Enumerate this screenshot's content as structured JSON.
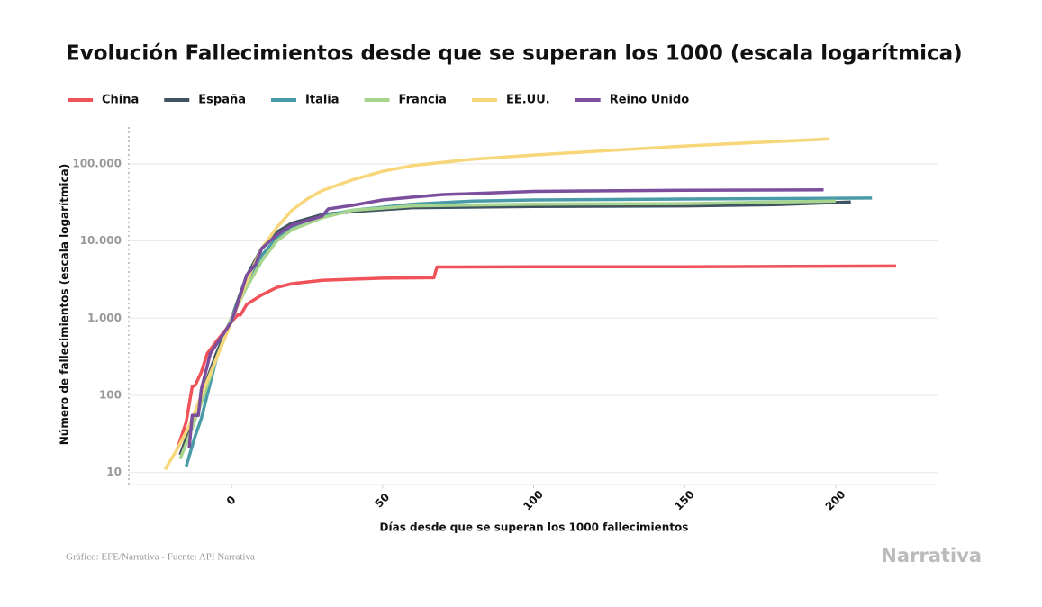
{
  "chart_data": {
    "type": "line",
    "title": "Evolución Fallecimientos desde que se superan los 1000 (escala logarítmica)",
    "x_label": "Días desde que se superan los 1000 fallecimientos",
    "y_label": "Número de fallecimientos (escala logarítmica)",
    "yscale": "log",
    "grid": true,
    "legend": "top",
    "xlim": [
      -34,
      234
    ],
    "xticks": [
      0,
      50,
      100,
      150,
      200
    ],
    "ylim": [
      7,
      300000
    ],
    "yticks": [
      10,
      100,
      {
        "value": 1000,
        "label": "1.000"
      },
      {
        "value": 10000,
        "label": "10.000"
      },
      {
        "value": 100000,
        "label": "100.000"
      }
    ],
    "series": [
      {
        "name": "China",
        "color": "#f0525a",
        "x": [
          -18,
          -15,
          -13,
          -12,
          -10,
          -8,
          -5,
          -2,
          0,
          2,
          3,
          5,
          10,
          15,
          20,
          30,
          50,
          67,
          68,
          100,
          150,
          220
        ],
        "values": [
          20,
          45,
          130,
          135,
          200,
          350,
          500,
          700,
          900,
          1100,
          1100,
          1500,
          2000,
          2500,
          2800,
          3100,
          3300,
          3340,
          4600,
          4630,
          4640,
          4740
        ]
      },
      {
        "name": "España",
        "color": "#3f5360",
        "x": [
          -17,
          -14,
          -10,
          -5,
          0,
          5,
          10,
          15,
          20,
          30,
          40,
          60,
          100,
          150,
          180,
          205
        ],
        "values": [
          17,
          35,
          100,
          350,
          1000,
          3500,
          8000,
          13000,
          17000,
          22000,
          24000,
          27000,
          28000,
          28500,
          29500,
          32000
        ]
      },
      {
        "name": "Italia",
        "color": "#4a9ba8",
        "x": [
          -15,
          -12,
          -10,
          -5,
          0,
          5,
          10,
          15,
          20,
          30,
          40,
          60,
          80,
          100,
          150,
          212
        ],
        "values": [
          12,
          30,
          50,
          300,
          1000,
          3000,
          6500,
          11000,
          15000,
          21000,
          25000,
          30000,
          33000,
          34000,
          35000,
          36000
        ]
      },
      {
        "name": "Francia",
        "color": "#a8d58d",
        "x": [
          -17,
          -14,
          -10,
          -5,
          0,
          5,
          10,
          15,
          20,
          30,
          40,
          60,
          100,
          150,
          200
        ],
        "values": [
          15,
          30,
          80,
          300,
          1000,
          2500,
          5500,
          10000,
          14000,
          20000,
          25000,
          28500,
          30000,
          30500,
          33000
        ]
      },
      {
        "name": "EE.UU.",
        "color": "#f7d77a",
        "x": [
          -22,
          -18,
          -14,
          -10,
          -5,
          0,
          5,
          10,
          15,
          20,
          25,
          30,
          40,
          50,
          60,
          80,
          100,
          150,
          198
        ],
        "values": [
          11,
          20,
          40,
          100,
          300,
          900,
          3000,
          8000,
          15000,
          25000,
          35000,
          45000,
          62000,
          80000,
          95000,
          115000,
          130000,
          170000,
          210000
        ]
      },
      {
        "name": "Reino Unido",
        "color": "#7b4f9d",
        "x": [
          -14,
          -13,
          -11,
          -10,
          -7,
          -3,
          0,
          3,
          5,
          8,
          10,
          15,
          20,
          30,
          32,
          40,
          50,
          60,
          70,
          100,
          150,
          196
        ],
        "values": [
          21,
          55,
          55,
          120,
          350,
          600,
          900,
          2000,
          3600,
          5000,
          8000,
          12000,
          16000,
          21000,
          26000,
          29000,
          34000,
          37000,
          40000,
          44000,
          45500,
          46000
        ]
      }
    ],
    "source": "Gráfico: EFE/Narrativa - Fuente: API Narrativa",
    "brand": "Narrativa"
  }
}
